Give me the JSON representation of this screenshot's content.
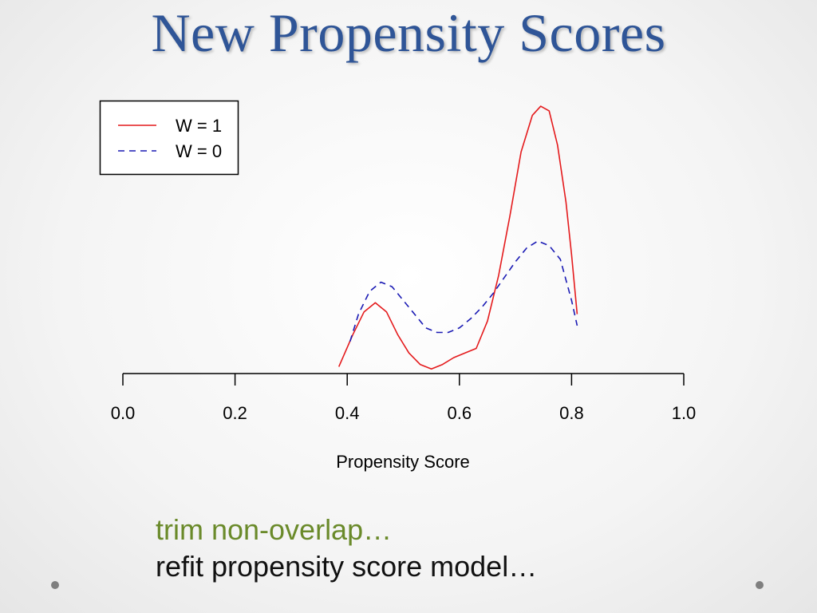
{
  "slide": {
    "title": "New Propensity Scores",
    "bullet_green": "trim non-overlap…",
    "bullet_black": "refit propensity score model…"
  },
  "colors": {
    "title": "#2f5597",
    "w1": "#e41a1c",
    "w0": "#1a1ab4",
    "green_text": "#6a8a2a"
  },
  "chart_data": {
    "type": "line",
    "xlabel": "Propensity Score",
    "xlim": [
      0,
      1
    ],
    "xticks": [
      0.0,
      0.2,
      0.4,
      0.6,
      0.8,
      1.0
    ],
    "xtick_labels": [
      "0.0",
      "0.2",
      "0.4",
      "0.6",
      "0.8",
      "1.0"
    ],
    "ylim": [
      0,
      5.8
    ],
    "y_axis_shown": false,
    "grid": false,
    "legend_position": "top-left",
    "series": [
      {
        "name": "W = 1",
        "style": "solid",
        "color": "#e41a1c",
        "x": [
          0.385,
          0.41,
          0.43,
          0.45,
          0.47,
          0.49,
          0.51,
          0.53,
          0.55,
          0.57,
          0.59,
          0.61,
          0.63,
          0.65,
          0.67,
          0.69,
          0.71,
          0.73,
          0.745,
          0.76,
          0.775,
          0.79,
          0.8,
          0.81
        ],
        "y": [
          0.15,
          0.85,
          1.35,
          1.55,
          1.35,
          0.85,
          0.45,
          0.2,
          0.1,
          0.2,
          0.35,
          0.45,
          0.55,
          1.15,
          2.15,
          3.45,
          4.85,
          5.65,
          5.85,
          5.75,
          5.0,
          3.75,
          2.6,
          1.3
        ]
      },
      {
        "name": "W = 0",
        "style": "dashed",
        "color": "#1a1ab4",
        "x": [
          0.405,
          0.42,
          0.44,
          0.46,
          0.48,
          0.5,
          0.52,
          0.54,
          0.56,
          0.58,
          0.6,
          0.62,
          0.64,
          0.66,
          0.68,
          0.7,
          0.72,
          0.74,
          0.76,
          0.78,
          0.8,
          0.81
        ],
        "y": [
          0.7,
          1.3,
          1.8,
          2.0,
          1.9,
          1.6,
          1.3,
          1.0,
          0.9,
          0.9,
          1.0,
          1.2,
          1.45,
          1.75,
          2.1,
          2.45,
          2.75,
          2.9,
          2.8,
          2.5,
          1.6,
          1.05
        ]
      }
    ]
  }
}
